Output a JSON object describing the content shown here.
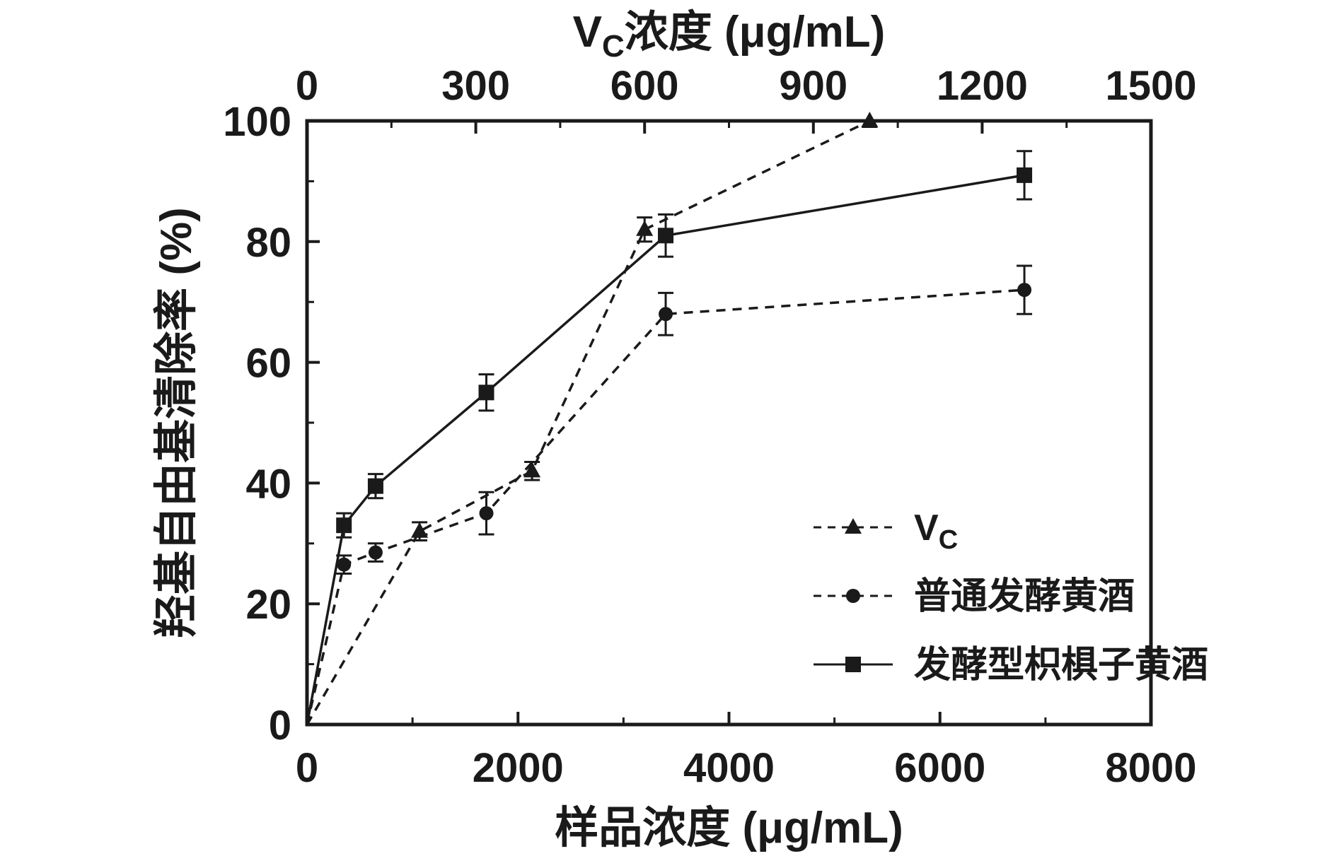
{
  "figure": {
    "background": "#ffffff",
    "ink_color": "#1a1a1a"
  },
  "chart_data": {
    "type": "line",
    "grid": false,
    "legend_position": "inside-right",
    "axes": {
      "top": {
        "label_prefix": "V",
        "label_sub": "C",
        "label_suffix": "浓度 (μg/mL)",
        "range": [
          0,
          1500
        ],
        "ticks": [
          0,
          300,
          600,
          900,
          1200,
          1500
        ]
      },
      "bottom": {
        "label": "样品浓度 (μg/mL)",
        "range": [
          0,
          8000
        ],
        "ticks": [
          0,
          2000,
          4000,
          6000,
          8000
        ]
      },
      "left": {
        "label": "羟基自由基清除率 (%)",
        "range": [
          0,
          100
        ],
        "ticks": [
          0,
          20,
          40,
          60,
          80,
          100
        ]
      }
    },
    "series": [
      {
        "name": "Vc",
        "legend_prefix": "V",
        "legend_sub": "C",
        "legend_suffix": "",
        "axis": "top",
        "marker": "triangle",
        "line_style": "dashed",
        "x": [
          0,
          200,
          400,
          600,
          1000
        ],
        "y": [
          0,
          32,
          42,
          82,
          100
        ],
        "yerr": [
          0,
          1.5,
          1.5,
          2,
          1
        ]
      },
      {
        "name": "普通发酵黄酒",
        "legend_prefix": "普通发酵黄酒",
        "legend_sub": "",
        "legend_suffix": "",
        "axis": "bottom",
        "marker": "circle",
        "line_style": "dashed",
        "x": [
          0,
          350,
          650,
          1700,
          3400,
          6800
        ],
        "y": [
          0,
          26.5,
          28.5,
          35,
          68,
          72
        ],
        "yerr": [
          0,
          1.5,
          1.5,
          3.5,
          3.5,
          4
        ]
      },
      {
        "name": "发酵型枳椇子黄酒",
        "legend_prefix": "发酵型枳椇子黄酒",
        "legend_sub": "",
        "legend_suffix": "",
        "axis": "bottom",
        "marker": "square",
        "line_style": "solid",
        "x": [
          0,
          350,
          650,
          1700,
          3400,
          6800
        ],
        "y": [
          0,
          33,
          39.5,
          55,
          81,
          91
        ],
        "yerr": [
          0,
          2,
          2,
          3,
          3.5,
          4
        ]
      }
    ]
  }
}
